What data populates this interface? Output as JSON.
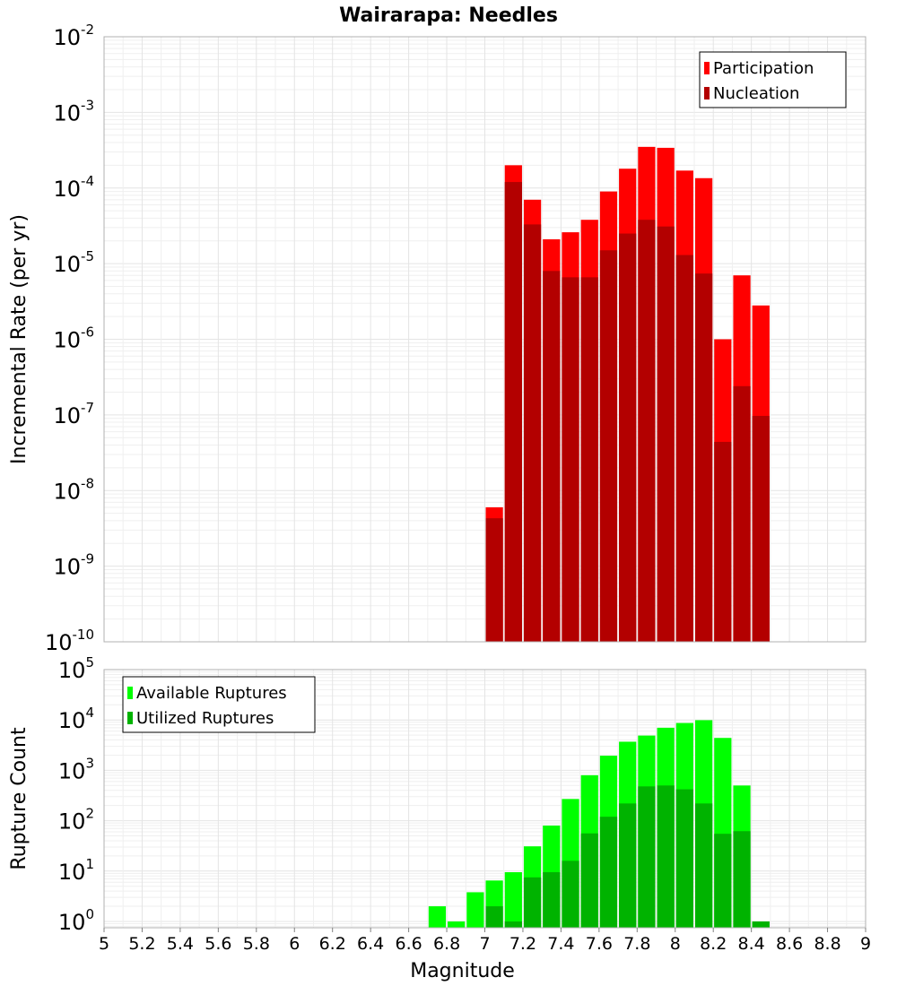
{
  "title": "Wairarapa: Needles",
  "chart_data": [
    {
      "type": "bar",
      "name": "top-panel",
      "ylabel": "Incremental Rate (per yr)",
      "yscale": "log",
      "ylim": [
        1e-10,
        0.01
      ],
      "xlim": [
        5,
        9
      ],
      "grid": true,
      "legend_position": "top-right",
      "bin_width": 0.1,
      "x": [
        7.05,
        7.15,
        7.25,
        7.35,
        7.45,
        7.55,
        7.65,
        7.75,
        7.85,
        7.95,
        8.05,
        8.15,
        8.25,
        8.35,
        8.45
      ],
      "series": [
        {
          "name": "Participation",
          "color": "#ff0000",
          "values": [
            6e-09,
            0.0002,
            7e-05,
            2.1e-05,
            2.6e-05,
            3.8e-05,
            9e-05,
            0.00018,
            0.00035,
            0.00034,
            0.00017,
            0.000135,
            1e-06,
            7e-06,
            2.8e-06
          ]
        },
        {
          "name": "Nucleation",
          "color": "#b30000",
          "values": [
            4.3e-09,
            0.00012,
            3.3e-05,
            8e-06,
            6.6e-06,
            6.6e-06,
            1.5e-05,
            2.5e-05,
            3.8e-05,
            3.1e-05,
            1.3e-05,
            7.4e-06,
            4.4e-08,
            2.4e-07,
            9.7e-08
          ]
        }
      ]
    },
    {
      "type": "bar",
      "name": "bottom-panel",
      "xlabel": "Magnitude",
      "ylabel": "Rupture Count",
      "yscale": "log",
      "ylim": [
        0.75,
        100000
      ],
      "xlim": [
        5,
        9
      ],
      "grid": true,
      "legend_position": "top-left",
      "bin_width": 0.1,
      "x": [
        6.75,
        6.85,
        6.95,
        7.05,
        7.15,
        7.25,
        7.35,
        7.45,
        7.55,
        7.65,
        7.75,
        7.85,
        7.95,
        8.05,
        8.15,
        8.25,
        8.35,
        8.45
      ],
      "series": [
        {
          "name": "Available Ruptures",
          "color": "#00ff00",
          "values": [
            2,
            1,
            3.8,
            6.5,
            9.5,
            31,
            80,
            270,
            800,
            1950,
            3700,
            4900,
            7000,
            8700,
            9900,
            4400,
            500,
            1
          ]
        },
        {
          "name": "Utilized Ruptures",
          "color": "#00b300",
          "values": [
            0,
            0,
            0,
            2,
            1,
            7.5,
            9.5,
            16,
            56,
            120,
            220,
            480,
            500,
            420,
            220,
            55,
            62,
            1
          ]
        }
      ]
    }
  ],
  "x_ticks": [
    "5",
    "5.2",
    "5.4",
    "5.6",
    "5.8",
    "6",
    "6.2",
    "6.4",
    "6.6",
    "6.8",
    "7",
    "7.2",
    "7.4",
    "7.6",
    "7.8",
    "8",
    "8.2",
    "8.4",
    "8.6",
    "8.8",
    "9"
  ],
  "top_y_ticks": [
    {
      "base": "10",
      "exp": "-2"
    },
    {
      "base": "10",
      "exp": "-3"
    },
    {
      "base": "10",
      "exp": "-4"
    },
    {
      "base": "10",
      "exp": "-5"
    },
    {
      "base": "10",
      "exp": "-6"
    },
    {
      "base": "10",
      "exp": "-7"
    },
    {
      "base": "10",
      "exp": "-8"
    },
    {
      "base": "10",
      "exp": "-9"
    },
    {
      "base": "10",
      "exp": "-10"
    }
  ],
  "bottom_y_ticks": [
    {
      "base": "10",
      "exp": "5"
    },
    {
      "base": "10",
      "exp": "4"
    },
    {
      "base": "10",
      "exp": "3"
    },
    {
      "base": "10",
      "exp": "2"
    },
    {
      "base": "10",
      "exp": "1"
    },
    {
      "base": "10",
      "exp": "0"
    }
  ]
}
